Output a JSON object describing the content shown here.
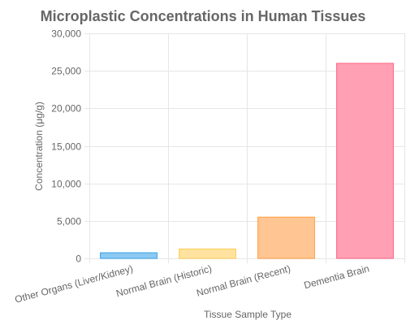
{
  "chart_data": {
    "type": "bar",
    "title": "Microplastic Concentrations in Human Tissues",
    "xlabel": "Tissue Sample Type",
    "ylabel": "Concentration (μg/g)",
    "categories": [
      "Other Organs (Liver/Kidney)",
      "Normal Brain (Historic)",
      "Normal Brain (Recent)",
      "Dementia Brain"
    ],
    "values": [
      750,
      1250,
      5500,
      26000
    ],
    "ylim": [
      0,
      30000
    ],
    "yticks": [
      0,
      5000,
      10000,
      15000,
      20000,
      25000,
      30000
    ],
    "ytick_labels": [
      "0",
      "5,000",
      "10,000",
      "15,000",
      "20,000",
      "25,000",
      "30,000"
    ],
    "grid": true,
    "legend": "none",
    "colors": {
      "fills": [
        "#8cc9f2",
        "#ffe29f",
        "#ffc592",
        "#ffa0b4"
      ],
      "strokes": [
        "#36a2eb",
        "#ffcd56",
        "#ff9f40",
        "#ff6384"
      ],
      "grid": "#e6e6e6",
      "text": "#666666"
    }
  }
}
